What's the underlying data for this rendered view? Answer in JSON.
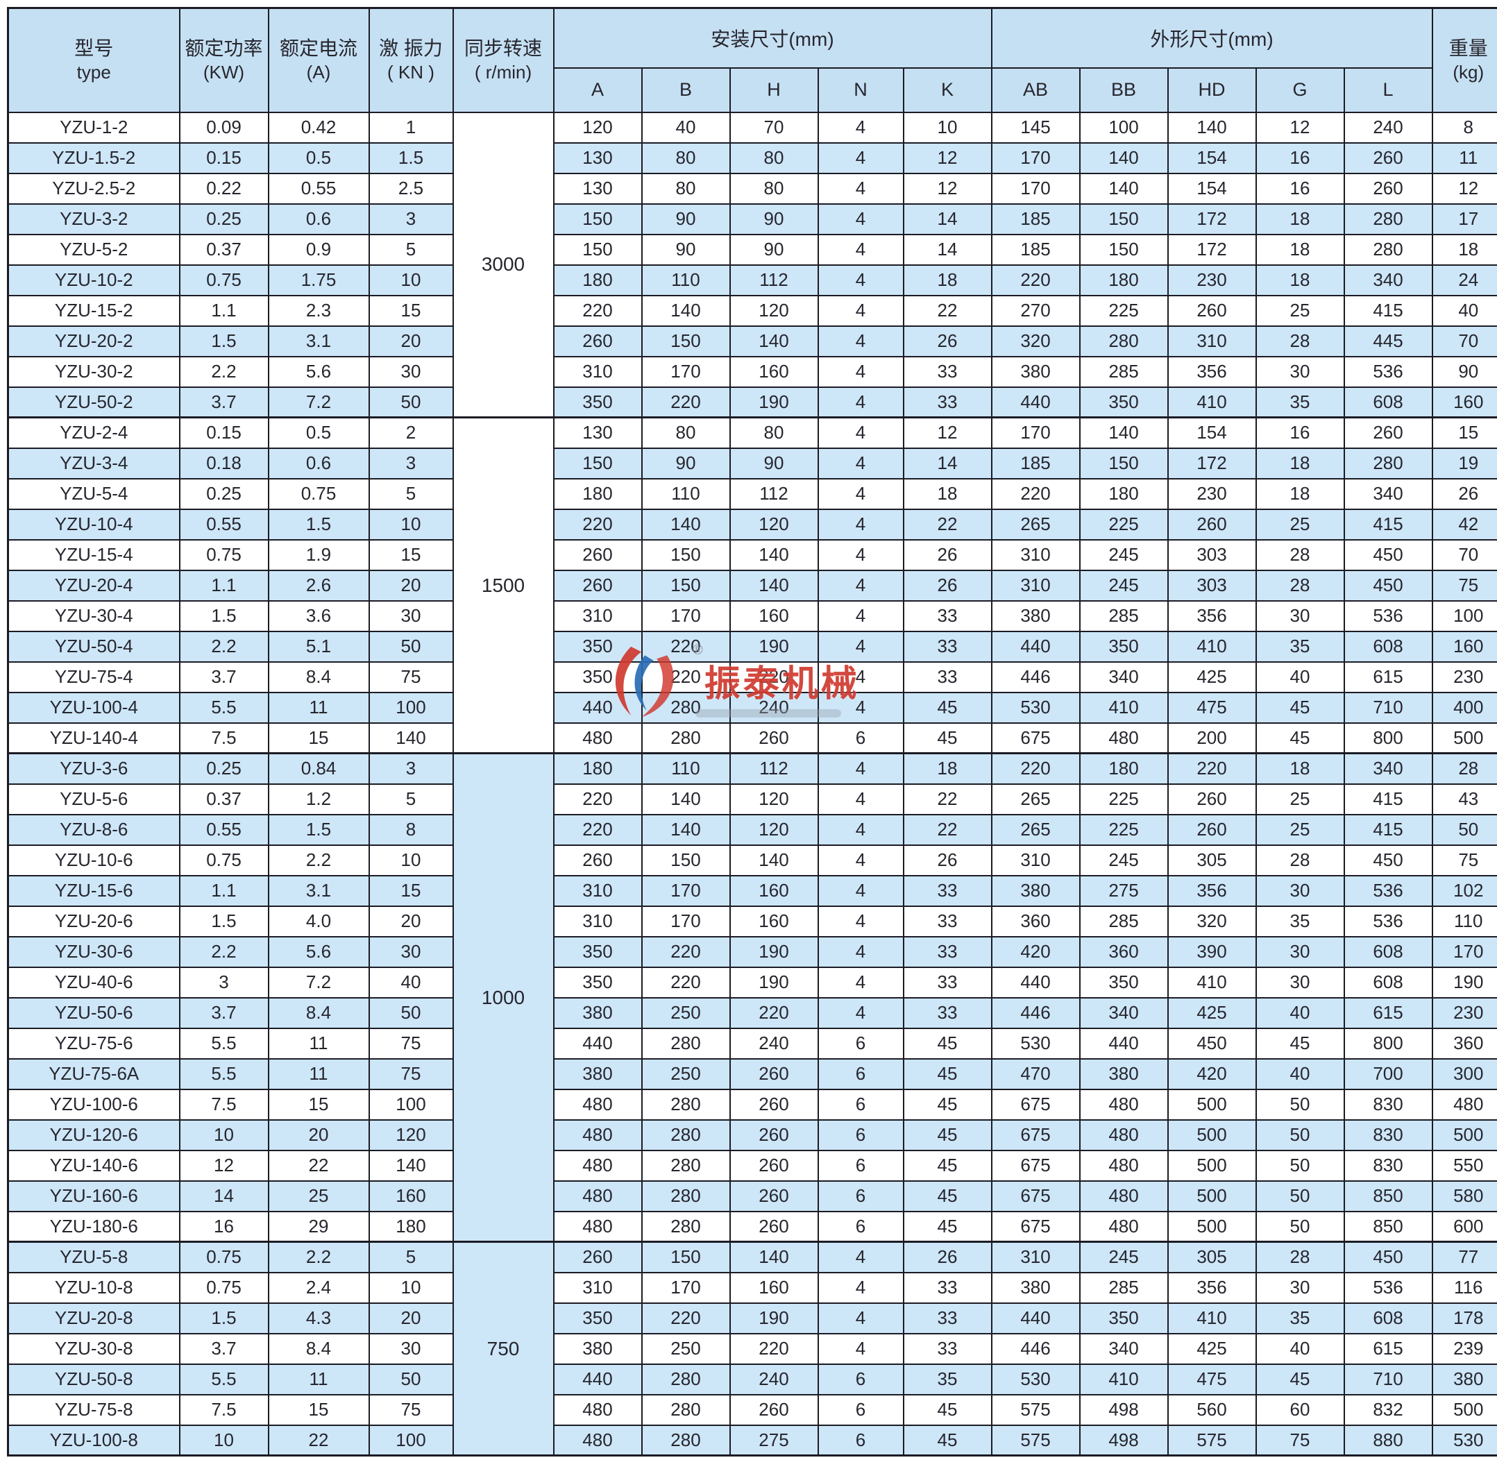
{
  "colors": {
    "header_bg": "#c6e0f3",
    "zebra_row_bg": "#cde6f8",
    "border": "#1b1b24",
    "text": "#26262e",
    "watermark_red": "#d03a2f",
    "watermark_blue": "#2a6db5"
  },
  "watermark": {
    "text": "振泰机械",
    "registered_mark": "®"
  },
  "table": {
    "columns": [
      {
        "id": "model",
        "zh": "型号",
        "sub": "type"
      },
      {
        "id": "power",
        "zh": "额定功率",
        "sub": "(KW)"
      },
      {
        "id": "current",
        "zh": "额定电流",
        "sub": "(A)"
      },
      {
        "id": "force",
        "zh": "激 振力",
        "sub": "( KN )"
      },
      {
        "id": "speed",
        "zh": "同步转速",
        "sub": "( r/min)"
      }
    ],
    "groups": [
      {
        "label": "安装尺寸(mm)",
        "cols": [
          "A",
          "B",
          "H",
          "N",
          "K"
        ]
      },
      {
        "label": "外形尺寸(mm)",
        "cols": [
          "AB",
          "BB",
          "HD",
          "G",
          "L"
        ]
      }
    ],
    "weight": {
      "zh": "重量",
      "sub": "(kg)"
    },
    "speed_groups": [
      {
        "speed": "3000",
        "start": 0,
        "count": 10
      },
      {
        "speed": "1500",
        "start": 10,
        "count": 11
      },
      {
        "speed": "1000",
        "start": 21,
        "count": 16
      },
      {
        "speed": "750",
        "start": 37,
        "count": 7
      }
    ],
    "rows": [
      [
        "YZU-1-2",
        "0.09",
        "0.42",
        "1",
        "120",
        "40",
        "70",
        "4",
        "10",
        "145",
        "100",
        "140",
        "12",
        "240",
        "8"
      ],
      [
        "YZU-1.5-2",
        "0.15",
        "0.5",
        "1.5",
        "130",
        "80",
        "80",
        "4",
        "12",
        "170",
        "140",
        "154",
        "16",
        "260",
        "11"
      ],
      [
        "YZU-2.5-2",
        "0.22",
        "0.55",
        "2.5",
        "130",
        "80",
        "80",
        "4",
        "12",
        "170",
        "140",
        "154",
        "16",
        "260",
        "12"
      ],
      [
        "YZU-3-2",
        "0.25",
        "0.6",
        "3",
        "150",
        "90",
        "90",
        "4",
        "14",
        "185",
        "150",
        "172",
        "18",
        "280",
        "17"
      ],
      [
        "YZU-5-2",
        "0.37",
        "0.9",
        "5",
        "150",
        "90",
        "90",
        "4",
        "14",
        "185",
        "150",
        "172",
        "18",
        "280",
        "18"
      ],
      [
        "YZU-10-2",
        "0.75",
        "1.75",
        "10",
        "180",
        "110",
        "112",
        "4",
        "18",
        "220",
        "180",
        "230",
        "18",
        "340",
        "24"
      ],
      [
        "YZU-15-2",
        "1.1",
        "2.3",
        "15",
        "220",
        "140",
        "120",
        "4",
        "22",
        "270",
        "225",
        "260",
        "25",
        "415",
        "40"
      ],
      [
        "YZU-20-2",
        "1.5",
        "3.1",
        "20",
        "260",
        "150",
        "140",
        "4",
        "26",
        "320",
        "280",
        "310",
        "28",
        "445",
        "70"
      ],
      [
        "YZU-30-2",
        "2.2",
        "5.6",
        "30",
        "310",
        "170",
        "160",
        "4",
        "33",
        "380",
        "285",
        "356",
        "30",
        "536",
        "90"
      ],
      [
        "YZU-50-2",
        "3.7",
        "7.2",
        "50",
        "350",
        "220",
        "190",
        "4",
        "33",
        "440",
        "350",
        "410",
        "35",
        "608",
        "160"
      ],
      [
        "YZU-2-4",
        "0.15",
        "0.5",
        "2",
        "130",
        "80",
        "80",
        "4",
        "12",
        "170",
        "140",
        "154",
        "16",
        "260",
        "15"
      ],
      [
        "YZU-3-4",
        "0.18",
        "0.6",
        "3",
        "150",
        "90",
        "90",
        "4",
        "14",
        "185",
        "150",
        "172",
        "18",
        "280",
        "19"
      ],
      [
        "YZU-5-4",
        "0.25",
        "0.75",
        "5",
        "180",
        "110",
        "112",
        "4",
        "18",
        "220",
        "180",
        "230",
        "18",
        "340",
        "26"
      ],
      [
        "YZU-10-4",
        "0.55",
        "1.5",
        "10",
        "220",
        "140",
        "120",
        "4",
        "22",
        "265",
        "225",
        "260",
        "25",
        "415",
        "42"
      ],
      [
        "YZU-15-4",
        "0.75",
        "1.9",
        "15",
        "260",
        "150",
        "140",
        "4",
        "26",
        "310",
        "245",
        "303",
        "28",
        "450",
        "70"
      ],
      [
        "YZU-20-4",
        "1.1",
        "2.6",
        "20",
        "260",
        "150",
        "140",
        "4",
        "26",
        "310",
        "245",
        "303",
        "28",
        "450",
        "75"
      ],
      [
        "YZU-30-4",
        "1.5",
        "3.6",
        "30",
        "310",
        "170",
        "160",
        "4",
        "33",
        "380",
        "285",
        "356",
        "30",
        "536",
        "100"
      ],
      [
        "YZU-50-4",
        "2.2",
        "5.1",
        "50",
        "350",
        "220",
        "190",
        "4",
        "33",
        "440",
        "350",
        "410",
        "35",
        "608",
        "160"
      ],
      [
        "YZU-75-4",
        "3.7",
        "8.4",
        "75",
        "350",
        "220",
        "220",
        "4",
        "33",
        "446",
        "340",
        "425",
        "40",
        "615",
        "230"
      ],
      [
        "YZU-100-4",
        "5.5",
        "11",
        "100",
        "440",
        "280",
        "240",
        "4",
        "45",
        "530",
        "410",
        "475",
        "45",
        "710",
        "400"
      ],
      [
        "YZU-140-4",
        "7.5",
        "15",
        "140",
        "480",
        "280",
        "260",
        "6",
        "45",
        "675",
        "480",
        "200",
        "45",
        "800",
        "500"
      ],
      [
        "YZU-3-6",
        "0.25",
        "0.84",
        "3",
        "180",
        "110",
        "112",
        "4",
        "18",
        "220",
        "180",
        "220",
        "18",
        "340",
        "28"
      ],
      [
        "YZU-5-6",
        "0.37",
        "1.2",
        "5",
        "220",
        "140",
        "120",
        "4",
        "22",
        "265",
        "225",
        "260",
        "25",
        "415",
        "43"
      ],
      [
        "YZU-8-6",
        "0.55",
        "1.5",
        "8",
        "220",
        "140",
        "120",
        "4",
        "22",
        "265",
        "225",
        "260",
        "25",
        "415",
        "50"
      ],
      [
        "YZU-10-6",
        "0.75",
        "2.2",
        "10",
        "260",
        "150",
        "140",
        "4",
        "26",
        "310",
        "245",
        "305",
        "28",
        "450",
        "75"
      ],
      [
        "YZU-15-6",
        "1.1",
        "3.1",
        "15",
        "310",
        "170",
        "160",
        "4",
        "33",
        "380",
        "275",
        "356",
        "30",
        "536",
        "102"
      ],
      [
        "YZU-20-6",
        "1.5",
        "4.0",
        "20",
        "310",
        "170",
        "160",
        "4",
        "33",
        "360",
        "285",
        "320",
        "35",
        "536",
        "110"
      ],
      [
        "YZU-30-6",
        "2.2",
        "5.6",
        "30",
        "350",
        "220",
        "190",
        "4",
        "33",
        "420",
        "360",
        "390",
        "30",
        "608",
        "170"
      ],
      [
        "YZU-40-6",
        "3",
        "7.2",
        "40",
        "350",
        "220",
        "190",
        "4",
        "33",
        "440",
        "350",
        "410",
        "30",
        "608",
        "190"
      ],
      [
        "YZU-50-6",
        "3.7",
        "8.4",
        "50",
        "380",
        "250",
        "220",
        "4",
        "33",
        "446",
        "340",
        "425",
        "40",
        "615",
        "230"
      ],
      [
        "YZU-75-6",
        "5.5",
        "11",
        "75",
        "440",
        "280",
        "240",
        "6",
        "45",
        "530",
        "440",
        "450",
        "45",
        "800",
        "360"
      ],
      [
        "YZU-75-6A",
        "5.5",
        "11",
        "75",
        "380",
        "250",
        "260",
        "6",
        "45",
        "470",
        "380",
        "420",
        "40",
        "700",
        "300"
      ],
      [
        "YZU-100-6",
        "7.5",
        "15",
        "100",
        "480",
        "280",
        "260",
        "6",
        "45",
        "675",
        "480",
        "500",
        "50",
        "830",
        "480"
      ],
      [
        "YZU-120-6",
        "10",
        "20",
        "120",
        "480",
        "280",
        "260",
        "6",
        "45",
        "675",
        "480",
        "500",
        "50",
        "830",
        "500"
      ],
      [
        "YZU-140-6",
        "12",
        "22",
        "140",
        "480",
        "280",
        "260",
        "6",
        "45",
        "675",
        "480",
        "500",
        "50",
        "830",
        "550"
      ],
      [
        "YZU-160-6",
        "14",
        "25",
        "160",
        "480",
        "280",
        "260",
        "6",
        "45",
        "675",
        "480",
        "500",
        "50",
        "850",
        "580"
      ],
      [
        "YZU-180-6",
        "16",
        "29",
        "180",
        "480",
        "280",
        "260",
        "6",
        "45",
        "675",
        "480",
        "500",
        "50",
        "850",
        "600"
      ],
      [
        "YZU-5-8",
        "0.75",
        "2.2",
        "5",
        "260",
        "150",
        "140",
        "4",
        "26",
        "310",
        "245",
        "305",
        "28",
        "450",
        "77"
      ],
      [
        "YZU-10-8",
        "0.75",
        "2.4",
        "10",
        "310",
        "170",
        "160",
        "4",
        "33",
        "380",
        "285",
        "356",
        "30",
        "536",
        "116"
      ],
      [
        "YZU-20-8",
        "1.5",
        "4.3",
        "20",
        "350",
        "220",
        "190",
        "4",
        "33",
        "440",
        "350",
        "410",
        "35",
        "608",
        "178"
      ],
      [
        "YZU-30-8",
        "3.7",
        "8.4",
        "30",
        "380",
        "250",
        "220",
        "4",
        "33",
        "446",
        "340",
        "425",
        "40",
        "615",
        "239"
      ],
      [
        "YZU-50-8",
        "5.5",
        "11",
        "50",
        "440",
        "280",
        "240",
        "6",
        "35",
        "530",
        "410",
        "475",
        "45",
        "710",
        "380"
      ],
      [
        "YZU-75-8",
        "7.5",
        "15",
        "75",
        "480",
        "280",
        "260",
        "6",
        "45",
        "575",
        "498",
        "560",
        "60",
        "832",
        "500"
      ],
      [
        "YZU-100-8",
        "10",
        "22",
        "100",
        "480",
        "280",
        "275",
        "6",
        "45",
        "575",
        "498",
        "575",
        "75",
        "880",
        "530"
      ]
    ]
  }
}
